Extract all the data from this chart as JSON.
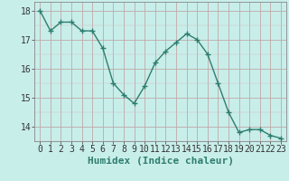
{
  "x": [
    0,
    1,
    2,
    3,
    4,
    5,
    6,
    7,
    8,
    9,
    10,
    11,
    12,
    13,
    14,
    15,
    16,
    17,
    18,
    19,
    20,
    21,
    22,
    23
  ],
  "y": [
    18.0,
    17.3,
    17.6,
    17.6,
    17.3,
    17.3,
    16.7,
    15.5,
    15.1,
    14.8,
    15.4,
    16.2,
    16.6,
    16.9,
    17.2,
    17.0,
    16.5,
    15.5,
    14.5,
    13.8,
    13.9,
    13.9,
    13.7,
    13.6
  ],
  "line_color": "#2e7d6e",
  "marker": "+",
  "marker_size": 4,
  "bg_color": "#c8eeea",
  "grid_color_major": "#c0a8a8",
  "xlabel": "Humidex (Indice chaleur)",
  "ylim": [
    13.5,
    18.3
  ],
  "xlim": [
    -0.5,
    23.5
  ],
  "yticks": [
    14,
    15,
    16,
    17,
    18
  ],
  "xticks": [
    0,
    1,
    2,
    3,
    4,
    5,
    6,
    7,
    8,
    9,
    10,
    11,
    12,
    13,
    14,
    15,
    16,
    17,
    18,
    19,
    20,
    21,
    22,
    23
  ],
  "xlabel_fontsize": 8,
  "tick_fontsize": 7
}
